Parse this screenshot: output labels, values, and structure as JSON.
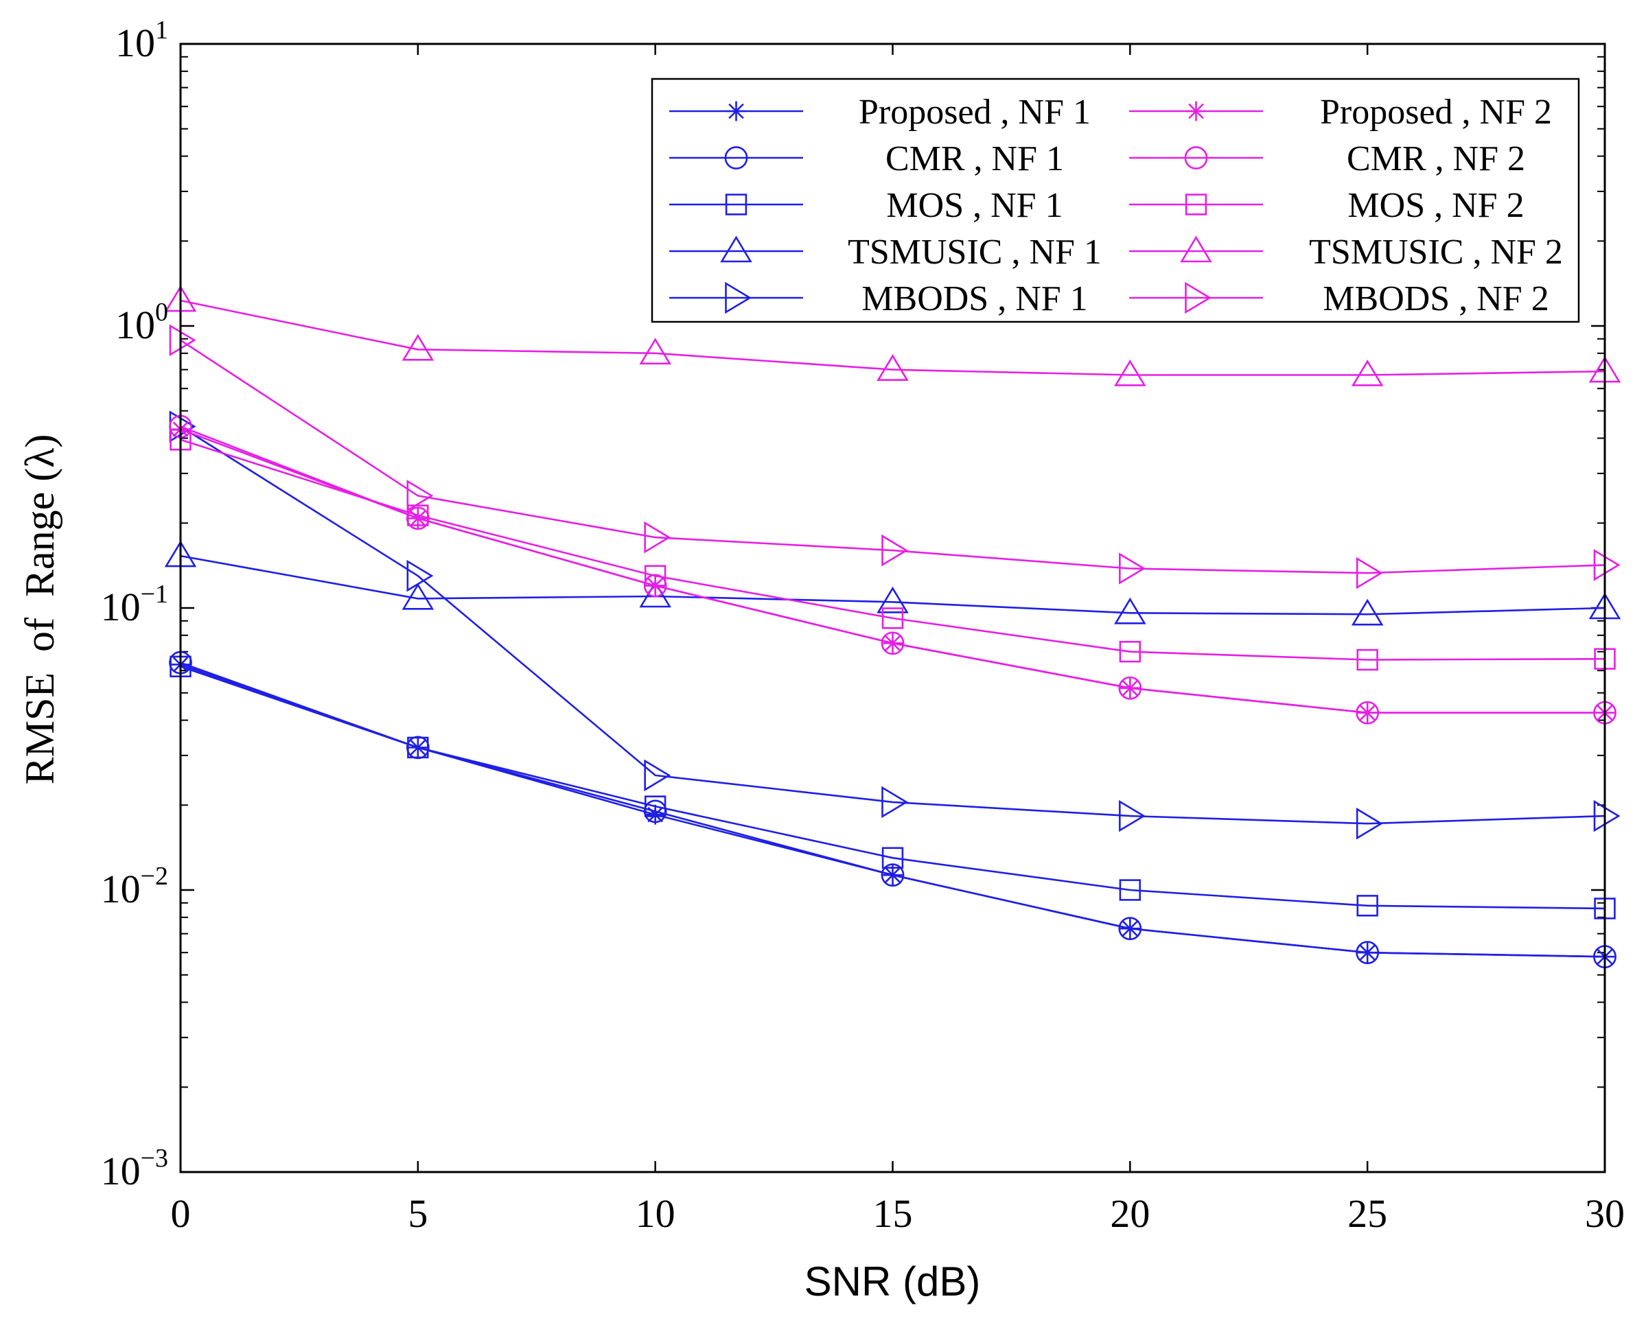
{
  "chart_data": {
    "type": "line",
    "yscale": "log",
    "xlabel": "SNR (dB)",
    "ylabel": "RMSE  of  Range (λ)",
    "xlim": [
      0,
      30
    ],
    "ylim": [
      0.001,
      10
    ],
    "x": [
      0,
      5,
      10,
      15,
      20,
      25,
      30
    ],
    "xticks": [
      0,
      5,
      10,
      15,
      20,
      25,
      30
    ],
    "xtick_labels": [
      "0",
      "5",
      "10",
      "15",
      "20",
      "25",
      "30"
    ],
    "yticks": [
      0.001,
      0.01,
      0.1,
      1,
      10
    ],
    "ytick_labels": [
      {
        "base": "10",
        "exp": "−3"
      },
      {
        "base": "10",
        "exp": "−2"
      },
      {
        "base": "10",
        "exp": "−1"
      },
      {
        "base": "10",
        "exp": "0"
      },
      {
        "base": "10",
        "exp": "1"
      }
    ],
    "grid": false,
    "legend_location": "top-right",
    "colors": {
      "nf1": "#1f1fe6",
      "nf2": "#e61fe6",
      "axis": "#000000"
    },
    "series": [
      {
        "name": "Proposed , NF 1",
        "group": "nf1",
        "marker": "asterisk",
        "values": [
          0.063,
          0.032,
          0.0185,
          0.0113,
          0.0073,
          0.006,
          0.0058
        ]
      },
      {
        "name": "CMR , NF 1",
        "group": "nf1",
        "marker": "circle",
        "values": [
          0.064,
          0.032,
          0.019,
          0.0113,
          0.0073,
          0.006,
          0.0058
        ]
      },
      {
        "name": "MOS , NF 1",
        "group": "nf1",
        "marker": "square",
        "values": [
          0.062,
          0.032,
          0.0198,
          0.013,
          0.01,
          0.0088,
          0.0086
        ]
      },
      {
        "name": "TSMUSIC , NF 1",
        "group": "nf1",
        "marker": "triangle-up",
        "values": [
          0.153,
          0.108,
          0.11,
          0.105,
          0.096,
          0.095,
          0.1
        ]
      },
      {
        "name": "MBODS , NF 1",
        "group": "nf1",
        "marker": "triangle-right",
        "values": [
          0.44,
          0.13,
          0.0255,
          0.0205,
          0.0183,
          0.0172,
          0.0183
        ]
      },
      {
        "name": "Proposed , NF 2",
        "group": "nf2",
        "marker": "asterisk",
        "values": [
          0.43,
          0.208,
          0.12,
          0.075,
          0.052,
          0.0425,
          0.0425
        ]
      },
      {
        "name": "CMR , NF 2",
        "group": "nf2",
        "marker": "circle",
        "values": [
          0.44,
          0.208,
          0.12,
          0.075,
          0.052,
          0.0425,
          0.0425
        ]
      },
      {
        "name": "MOS , NF 2",
        "group": "nf2",
        "marker": "square",
        "values": [
          0.395,
          0.213,
          0.13,
          0.092,
          0.07,
          0.0655,
          0.066
        ]
      },
      {
        "name": "TSMUSIC , NF 2",
        "group": "nf2",
        "marker": "triangle-up",
        "values": [
          1.23,
          0.825,
          0.8,
          0.7,
          0.67,
          0.67,
          0.69
        ]
      },
      {
        "name": "MBODS , NF 2",
        "group": "nf2",
        "marker": "triangle-right",
        "values": [
          0.89,
          0.25,
          0.178,
          0.16,
          0.138,
          0.133,
          0.142
        ]
      }
    ]
  }
}
